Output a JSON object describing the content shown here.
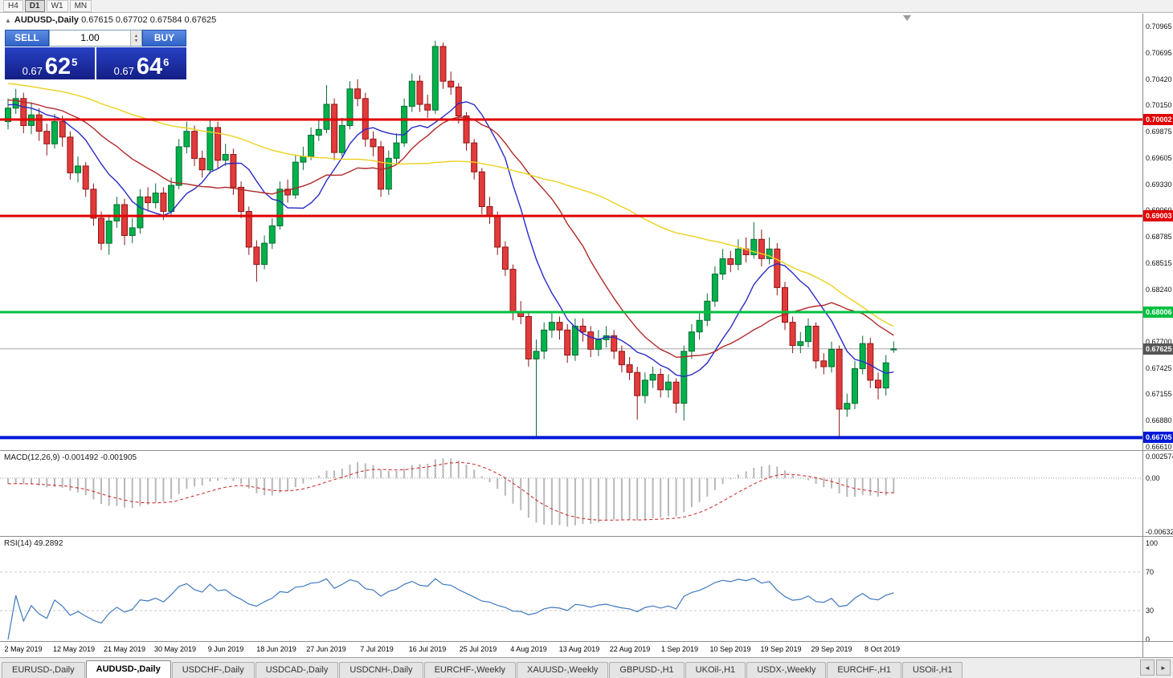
{
  "toolbar": {
    "timeframes": [
      {
        "label": "H4",
        "active": false
      },
      {
        "label": "D1",
        "active": true
      },
      {
        "label": "W1",
        "active": false
      },
      {
        "label": "MN",
        "active": false
      }
    ]
  },
  "icons": {
    "collapse": "▲",
    "spinner_up": "▲",
    "spinner_down": "▼",
    "tab_scroll_left": "◄",
    "tab_scroll_right": "►"
  },
  "chart": {
    "header": {
      "symbol": "AUDUSD-,Daily",
      "ohlc": "0.67615 0.67702 0.67584 0.67625"
    },
    "one_click": {
      "sell_label": "SELL",
      "buy_label": "BUY",
      "volume": "1.00",
      "sell_price": {
        "prefix": "0.67",
        "big": "62",
        "sup": "5"
      },
      "buy_price": {
        "prefix": "0.67",
        "big": "64",
        "sup": "6"
      }
    },
    "y_axis": {
      "ticks": [
        "0.70965",
        "0.70695",
        "0.70420",
        "0.70150",
        "0.69875",
        "0.69605",
        "0.69330",
        "0.69060",
        "0.68785",
        "0.68515",
        "0.68240",
        "0.67970",
        "0.67700",
        "0.67425",
        "0.67155",
        "0.66880",
        "0.66610"
      ],
      "top_price": 0.711,
      "bottom_price": 0.66575
    },
    "hlines": [
      {
        "label": "0.70002",
        "price": 0.70002,
        "color": "#e00000",
        "weight": 3
      },
      {
        "label": "0.69003",
        "price": 0.69003,
        "color": "#e00000",
        "weight": 3
      },
      {
        "label": "0.68006",
        "price": 0.68006,
        "color": "#00c040",
        "weight": 3
      },
      {
        "label": "0.66705",
        "price": 0.66705,
        "color": "#0018d8",
        "weight": 4
      }
    ],
    "current_price": {
      "label": "0.67625",
      "price": 0.67625,
      "line_color": "#a6a6a6",
      "tag_bg": "#565656"
    },
    "time_labels": [
      "2 May 2019",
      "12 May 2019",
      "21 May 2019",
      "30 May 2019",
      "9 Jun 2019",
      "18 Jun 2019",
      "27 Jun 2019",
      "7 Jul 2019",
      "16 Jul 2019",
      "25 Jul 2019",
      "4 Aug 2019",
      "13 Aug 2019",
      "22 Aug 2019",
      "1 Sep 2019",
      "10 Sep 2019",
      "19 Sep 2019",
      "29 Sep 2019",
      "8 Oct 2019"
    ],
    "moving_averages": [
      {
        "name": "ma-fast",
        "period": 10,
        "color": "#2a2ac8"
      },
      {
        "name": "ma-mid",
        "period": 20,
        "color": "#b22828"
      },
      {
        "name": "ma-slow",
        "period": 55,
        "color": "#ecd11e"
      }
    ],
    "history_seed": {
      "start": 0.7065,
      "bars": 55
    },
    "candle_colors": {
      "up_fill": "#00b24a",
      "up_stroke": "#0b6b34",
      "down_fill": "#e23b3b",
      "down_stroke": "#8f1414"
    },
    "candles": [
      [
        0.6998,
        0.7022,
        0.699,
        0.7012
      ],
      [
        0.7012,
        0.7032,
        0.7006,
        0.7022
      ],
      [
        0.7022,
        0.7028,
        0.6986,
        0.6994
      ],
      [
        0.6994,
        0.7018,
        0.6985,
        0.7005
      ],
      [
        0.7005,
        0.7012,
        0.6978,
        0.6988
      ],
      [
        0.6988,
        0.6996,
        0.6963,
        0.6975
      ],
      [
        0.6975,
        0.7006,
        0.697,
        0.6998
      ],
      [
        0.6998,
        0.7004,
        0.6972,
        0.6982
      ],
      [
        0.6982,
        0.6988,
        0.6938,
        0.6945
      ],
      [
        0.6945,
        0.6962,
        0.6935,
        0.6952
      ],
      [
        0.6952,
        0.6956,
        0.692,
        0.6928
      ],
      [
        0.6928,
        0.6934,
        0.689,
        0.6898
      ],
      [
        0.6898,
        0.6905,
        0.6865,
        0.6872
      ],
      [
        0.6872,
        0.6902,
        0.686,
        0.6895
      ],
      [
        0.6895,
        0.692,
        0.6888,
        0.6912
      ],
      [
        0.6912,
        0.6918,
        0.687,
        0.688
      ],
      [
        0.688,
        0.6898,
        0.6872,
        0.6888
      ],
      [
        0.6888,
        0.6928,
        0.6882,
        0.692
      ],
      [
        0.692,
        0.693,
        0.6905,
        0.6914
      ],
      [
        0.6914,
        0.6934,
        0.6908,
        0.6924
      ],
      [
        0.6924,
        0.693,
        0.6896,
        0.6905
      ],
      [
        0.6905,
        0.694,
        0.69,
        0.6932
      ],
      [
        0.6932,
        0.698,
        0.6928,
        0.6972
      ],
      [
        0.6972,
        0.6998,
        0.6965,
        0.6988
      ],
      [
        0.6988,
        0.6994,
        0.6952,
        0.696
      ],
      [
        0.696,
        0.6968,
        0.694,
        0.6948
      ],
      [
        0.6948,
        0.7,
        0.6944,
        0.6992
      ],
      [
        0.6992,
        0.6998,
        0.695,
        0.6958
      ],
      [
        0.6958,
        0.6975,
        0.6952,
        0.6964
      ],
      [
        0.6964,
        0.697,
        0.6922,
        0.693
      ],
      [
        0.693,
        0.6936,
        0.6898,
        0.6905
      ],
      [
        0.6905,
        0.691,
        0.686,
        0.6868
      ],
      [
        0.6868,
        0.6875,
        0.6832,
        0.685
      ],
      [
        0.685,
        0.688,
        0.6845,
        0.6872
      ],
      [
        0.6872,
        0.6898,
        0.6866,
        0.689
      ],
      [
        0.689,
        0.6936,
        0.6886,
        0.6928
      ],
      [
        0.6928,
        0.6938,
        0.6914,
        0.6922
      ],
      [
        0.6922,
        0.6964,
        0.6918,
        0.6956
      ],
      [
        0.6956,
        0.6972,
        0.6948,
        0.6962
      ],
      [
        0.6962,
        0.6992,
        0.6958,
        0.6984
      ],
      [
        0.6984,
        0.7,
        0.6978,
        0.699
      ],
      [
        0.699,
        0.7036,
        0.6986,
        0.7016
      ],
      [
        0.7016,
        0.7022,
        0.6958,
        0.6966
      ],
      [
        0.6966,
        0.7002,
        0.6962,
        0.6994
      ],
      [
        0.6994,
        0.704,
        0.699,
        0.7032
      ],
      [
        0.7032,
        0.7042,
        0.7014,
        0.7022
      ],
      [
        0.7022,
        0.7028,
        0.6972,
        0.698
      ],
      [
        0.698,
        0.6988,
        0.6962,
        0.6972
      ],
      [
        0.6972,
        0.6978,
        0.692,
        0.6928
      ],
      [
        0.6928,
        0.6968,
        0.6922,
        0.696
      ],
      [
        0.696,
        0.6986,
        0.6954,
        0.6976
      ],
      [
        0.6976,
        0.7022,
        0.6972,
        0.7014
      ],
      [
        0.7014,
        0.7048,
        0.7008,
        0.704
      ],
      [
        0.704,
        0.7046,
        0.7008,
        0.7016
      ],
      [
        0.7016,
        0.7026,
        0.7002,
        0.701
      ],
      [
        0.701,
        0.7082,
        0.7006,
        0.7076
      ],
      [
        0.7076,
        0.708,
        0.7032,
        0.704
      ],
      [
        0.704,
        0.705,
        0.7026,
        0.7034
      ],
      [
        0.7034,
        0.7038,
        0.6996,
        0.7004
      ],
      [
        0.7004,
        0.7008,
        0.6968,
        0.6976
      ],
      [
        0.6976,
        0.698,
        0.6938,
        0.6946
      ],
      [
        0.6946,
        0.695,
        0.6902,
        0.691
      ],
      [
        0.691,
        0.692,
        0.6892,
        0.69
      ],
      [
        0.69,
        0.6905,
        0.686,
        0.6868
      ],
      [
        0.6868,
        0.6874,
        0.6838,
        0.6845
      ],
      [
        0.6845,
        0.685,
        0.6792,
        0.68
      ],
      [
        0.68,
        0.6812,
        0.6788,
        0.6796
      ],
      [
        0.6796,
        0.68,
        0.6744,
        0.6752
      ],
      [
        0.6752,
        0.6772,
        0.6671,
        0.676
      ],
      [
        0.676,
        0.679,
        0.6752,
        0.6782
      ],
      [
        0.6782,
        0.68,
        0.6774,
        0.679
      ],
      [
        0.679,
        0.6796,
        0.6772,
        0.6782
      ],
      [
        0.6782,
        0.6788,
        0.6748,
        0.6756
      ],
      [
        0.6756,
        0.6794,
        0.675,
        0.6786
      ],
      [
        0.6786,
        0.6794,
        0.677,
        0.678
      ],
      [
        0.678,
        0.6786,
        0.6754,
        0.6762
      ],
      [
        0.6762,
        0.6782,
        0.6755,
        0.6772
      ],
      [
        0.6772,
        0.6786,
        0.6764,
        0.6776
      ],
      [
        0.6776,
        0.6782,
        0.6752,
        0.676
      ],
      [
        0.676,
        0.6766,
        0.6738,
        0.6746
      ],
      [
        0.6746,
        0.6754,
        0.673,
        0.6738
      ],
      [
        0.6738,
        0.6744,
        0.6689,
        0.6714
      ],
      [
        0.6714,
        0.6738,
        0.6706,
        0.673
      ],
      [
        0.673,
        0.6744,
        0.6722,
        0.6736
      ],
      [
        0.6736,
        0.6742,
        0.6712,
        0.672
      ],
      [
        0.672,
        0.6736,
        0.6712,
        0.6728
      ],
      [
        0.6728,
        0.6732,
        0.6696,
        0.6706
      ],
      [
        0.6706,
        0.6766,
        0.6688,
        0.676
      ],
      [
        0.676,
        0.6788,
        0.6752,
        0.678
      ],
      [
        0.678,
        0.68,
        0.6772,
        0.6792
      ],
      [
        0.6792,
        0.682,
        0.6786,
        0.6812
      ],
      [
        0.6812,
        0.6848,
        0.6806,
        0.684
      ],
      [
        0.684,
        0.6866,
        0.6834,
        0.6856
      ],
      [
        0.6856,
        0.6864,
        0.6842,
        0.685
      ],
      [
        0.685,
        0.6876,
        0.6844,
        0.6866
      ],
      [
        0.6866,
        0.6878,
        0.6852,
        0.686
      ],
      [
        0.686,
        0.6894,
        0.6856,
        0.6876
      ],
      [
        0.6876,
        0.6886,
        0.6848,
        0.6856
      ],
      [
        0.6856,
        0.6878,
        0.685,
        0.6866
      ],
      [
        0.6866,
        0.6872,
        0.6818,
        0.6826
      ],
      [
        0.6826,
        0.6832,
        0.6782,
        0.679
      ],
      [
        0.679,
        0.6796,
        0.6758,
        0.6766
      ],
      [
        0.6766,
        0.678,
        0.6758,
        0.677
      ],
      [
        0.677,
        0.6794,
        0.6764,
        0.6786
      ],
      [
        0.6786,
        0.679,
        0.6742,
        0.675
      ],
      [
        0.675,
        0.6758,
        0.6736,
        0.6744
      ],
      [
        0.6744,
        0.677,
        0.6738,
        0.6762
      ],
      [
        0.6762,
        0.6766,
        0.6671,
        0.67
      ],
      [
        0.67,
        0.6716,
        0.6692,
        0.6706
      ],
      [
        0.6706,
        0.675,
        0.67,
        0.6742
      ],
      [
        0.6742,
        0.6776,
        0.6736,
        0.6768
      ],
      [
        0.6768,
        0.6774,
        0.6722,
        0.673
      ],
      [
        0.673,
        0.6738,
        0.671,
        0.6722
      ],
      [
        0.6722,
        0.6756,
        0.6714,
        0.6748
      ],
      [
        0.67615,
        0.67702,
        0.67584,
        0.67625
      ]
    ]
  },
  "macd": {
    "title": "MACD(12,26,9)",
    "values": "-0.001492 -0.001905",
    "fast": 12,
    "slow": 26,
    "signal": 9,
    "axis_ticks": [
      {
        "label": "0.002574",
        "value": 0.002574
      },
      {
        "label": "0.00",
        "value": 0
      },
      {
        "label": "-0.006326",
        "value": -0.006326
      }
    ],
    "range": {
      "max": 0.0032,
      "min": -0.0068
    },
    "histogram_color": "#b8b8b8",
    "signal_color": "#cc2020"
  },
  "rsi": {
    "title": "RSI(14)",
    "value": "49.2892",
    "period": 14,
    "axis_ticks": [
      {
        "label": "100",
        "value": 100
      },
      {
        "label": "70",
        "value": 70
      },
      {
        "label": "30",
        "value": 30
      },
      {
        "label": "0",
        "value": 0
      }
    ],
    "levels": [
      70,
      30
    ],
    "line_color": "#3e78be",
    "level_color": "#c8c8c8"
  },
  "tabs": [
    {
      "label": "EURUSD-,Daily",
      "active": false
    },
    {
      "label": "AUDUSD-,Daily",
      "active": true
    },
    {
      "label": "USDCHF-,Daily",
      "active": false
    },
    {
      "label": "USDCAD-,Daily",
      "active": false
    },
    {
      "label": "USDCNH-,Daily",
      "active": false
    },
    {
      "label": "EURCHF-,Weekly",
      "active": false
    },
    {
      "label": "XAUUSD-,Weekly",
      "active": false
    },
    {
      "label": "GBPUSD-,H1",
      "active": false
    },
    {
      "label": "UKOil-,H1",
      "active": false
    },
    {
      "label": "USDX-,Weekly",
      "active": false
    },
    {
      "label": "EURCHF-,H1",
      "active": false
    },
    {
      "label": "USOil-,H1",
      "active": false
    }
  ]
}
